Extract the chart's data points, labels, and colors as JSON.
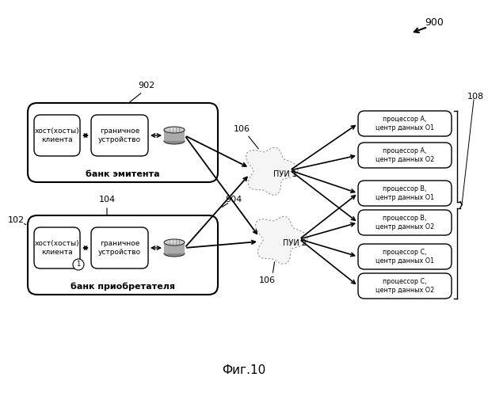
{
  "title": "Фиг.10",
  "label_900": "900",
  "label_902": "902",
  "label_904": "904",
  "label_102": "102",
  "label_104": "104",
  "label_106a": "106",
  "label_106b": "106",
  "label_108": "108",
  "bank_emitter_label": "банк эмитента",
  "bank_acquirer_label": "банк приобретателя",
  "host_label": "хост(хосты)\nклиента",
  "border_label": "граничное\nустройство",
  "pui1_label": "ПУИ 1",
  "pui2_label": "ПУИ 2",
  "processors": [
    "процессор А,\nцентр данных О1",
    "процессор А,\nцентр данных О2",
    "процессор В,\nцентр данных О1",
    "процессор В,\nцентр данных О2",
    "процессор С,\nцентр данных О1",
    "процессор С,\nцентр данных О2"
  ],
  "bg_color": "#ffffff",
  "text_color": "#000000"
}
